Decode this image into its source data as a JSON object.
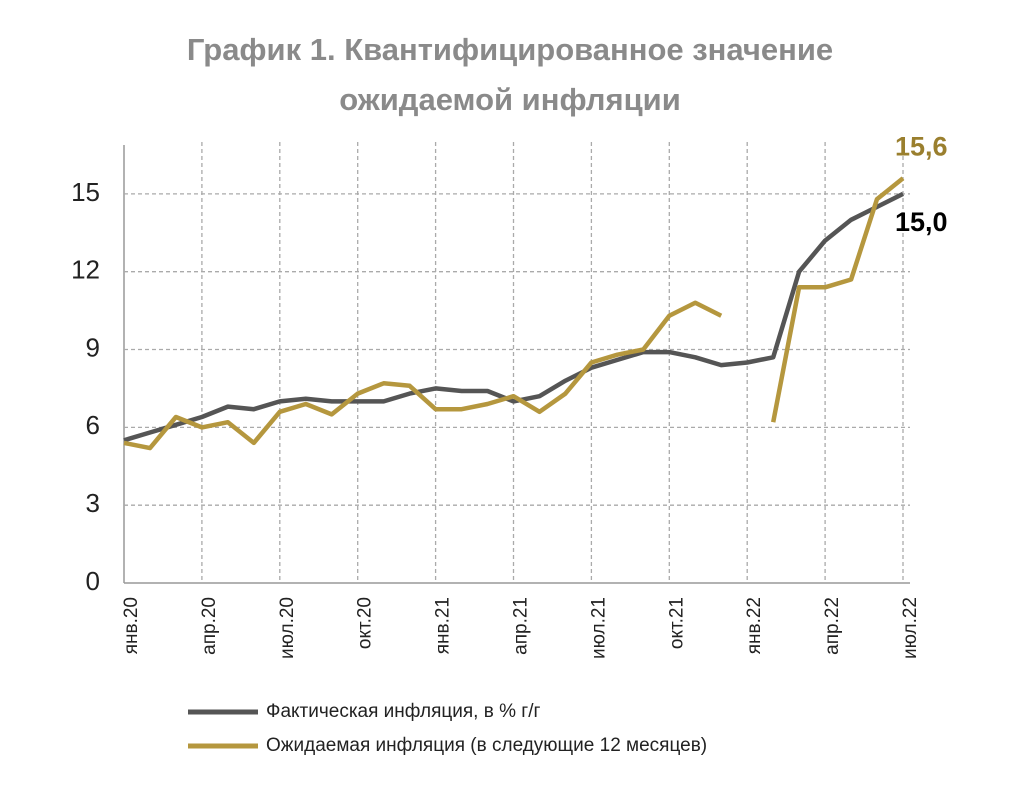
{
  "chart_data": {
    "type": "line",
    "title": [
      "График 1. Квантифицированное значение",
      "ожидаемой инфляции"
    ],
    "categories": [
      "янв.20",
      null,
      null,
      "апр.20",
      null,
      null,
      "июл.20",
      null,
      null,
      "окт.20",
      null,
      null,
      "янв.21",
      null,
      null,
      "апр.21",
      null,
      null,
      "июл.21",
      null,
      null,
      "окт.21",
      null,
      null,
      "янв.22",
      null,
      null,
      "апр.22",
      null,
      null,
      "июл.22"
    ],
    "series": [
      {
        "name": "Фактическая инфляция, в % г/г",
        "color": "#555555",
        "values": [
          5.5,
          5.8,
          6.1,
          6.4,
          6.8,
          6.7,
          7.0,
          7.1,
          7.0,
          7.0,
          7.0,
          7.3,
          7.5,
          7.4,
          7.4,
          7.0,
          7.2,
          7.8,
          8.3,
          8.6,
          8.9,
          8.9,
          8.7,
          8.4,
          8.5,
          8.7,
          12.0,
          13.2,
          14.0,
          14.5,
          15.0
        ],
        "value_labels": [
          null,
          null,
          null,
          null,
          null,
          null,
          null,
          null,
          null,
          null,
          null,
          null,
          null,
          null,
          null,
          null,
          null,
          null,
          null,
          null,
          null,
          null,
          null,
          null,
          null,
          null,
          null,
          null,
          null,
          null,
          "15,0"
        ],
        "label_color": "#000000"
      },
      {
        "name": "Ожидаемая инфляция (в следующие 12 месяцев)",
        "color": "#b5973e",
        "values": [
          5.4,
          5.2,
          6.4,
          6.0,
          6.2,
          5.4,
          6.6,
          6.9,
          6.5,
          7.3,
          7.7,
          7.6,
          6.7,
          6.7,
          6.9,
          7.2,
          6.6,
          7.3,
          8.5,
          8.8,
          9.0,
          10.3,
          10.8,
          10.3,
          null,
          6.2,
          11.4,
          11.4,
          11.7,
          14.8,
          15.6
        ],
        "value_labels": [
          null,
          null,
          null,
          null,
          null,
          null,
          null,
          null,
          null,
          null,
          null,
          null,
          null,
          null,
          null,
          null,
          null,
          null,
          null,
          null,
          null,
          null,
          null,
          null,
          null,
          null,
          null,
          null,
          null,
          null,
          "15,6"
        ],
        "label_color": "#9a7f2e"
      }
    ],
    "ylim": [
      0,
      17
    ],
    "yticks": [
      0,
      3,
      6,
      9,
      12,
      15
    ],
    "grid": true
  }
}
